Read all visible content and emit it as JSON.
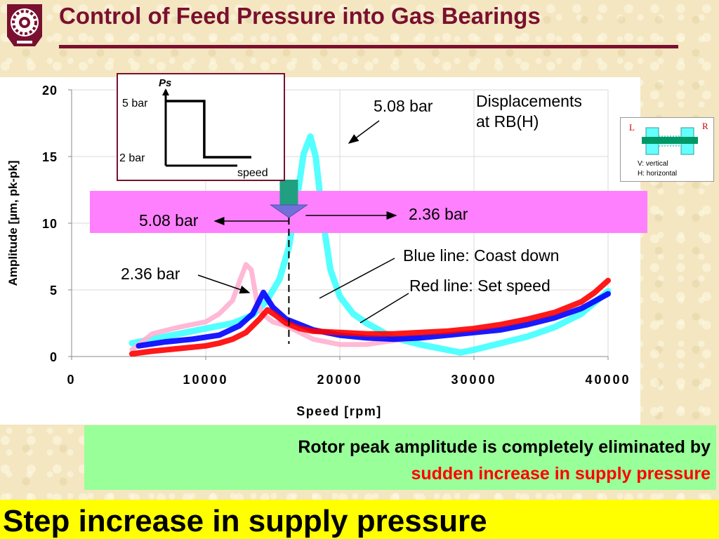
{
  "slide": {
    "title": "Control of Feed Pressure into Gas Bearings",
    "colors": {
      "title": "#7a1030",
      "highlight_band": "#ff80ff",
      "green_box": "#99ff99",
      "yellow_bar": "#ffff00",
      "emphasis_red": "#ff0000"
    }
  },
  "logo": {
    "icon": "gear-seal-logo-icon"
  },
  "inset_plot": {
    "ylabel": "Ps",
    "label_high": "5 bar",
    "label_low": "2 bar",
    "xlabel": "speed",
    "step": {
      "high_bar": 5,
      "low_bar": 2,
      "step_fraction_of_speed": 0.45
    }
  },
  "legend_box": {
    "label_left": "L",
    "label_right": "R",
    "line1": "V: vertical",
    "line2": "H: horizontal",
    "icon": "rotor-bearing-schematic-icon"
  },
  "annotations": {
    "displacements": [
      "Displacements",
      "at RB(H)"
    ],
    "pressure_top": "5.08 bar",
    "band_left": "5.08 bar",
    "band_right": "2.36 bar",
    "pressure_low": "2.36 bar",
    "blue_line": "Blue line: Coast down",
    "red_line": "Red line: Set speed",
    "step_speed_rpm": 16200
  },
  "chart_data": {
    "type": "line",
    "xlabel": "Speed [rpm]",
    "ylabel": "Amplitude [µm, pk-pk]",
    "xlim": [
      0,
      40000
    ],
    "ylim": [
      0,
      20
    ],
    "xticks": [
      0,
      10000,
      20000,
      30000,
      40000
    ],
    "xtick_labels": [
      "0",
      "10000",
      "20000",
      "30000",
      "40000"
    ],
    "yticks": [
      0,
      5,
      10,
      15,
      20
    ],
    "ytick_labels": [
      "0",
      "5",
      "10",
      "15",
      "20"
    ],
    "grid": true,
    "series": [
      {
        "color": "#40ffff",
        "x": [
          4500,
          6000,
          8000,
          10000,
          12000,
          13500,
          14500,
          15500,
          16200,
          16800,
          17300,
          17800,
          18200,
          18700,
          19300,
          20000,
          21000,
          22000,
          24000,
          26000,
          28000,
          29000,
          30000,
          32000,
          34000,
          36000,
          38000,
          40000
        ],
        "y": [
          1.0,
          1.3,
          1.7,
          2.1,
          2.5,
          3.1,
          4.1,
          5.8,
          8.2,
          11.8,
          15.2,
          16.5,
          15.0,
          10.5,
          6.5,
          4.5,
          3.2,
          2.5,
          1.4,
          0.9,
          0.5,
          0.3,
          0.5,
          1.0,
          1.5,
          2.2,
          3.2,
          4.9
        ]
      },
      {
        "color": "#ffb0d0",
        "x": [
          4500,
          6000,
          8000,
          10000,
          11000,
          12000,
          12500,
          13000,
          13400,
          13800,
          14200,
          15000,
          16000,
          17000,
          18000,
          20000,
          22000,
          24000,
          26000
        ],
        "y": [
          0.5,
          1.7,
          2.2,
          2.6,
          3.2,
          4.2,
          5.6,
          6.9,
          6.5,
          4.2,
          3.2,
          2.6,
          2.3,
          1.8,
          1.3,
          0.9,
          0.9,
          1.2,
          1.4
        ]
      },
      {
        "color": "#0000ff",
        "x": [
          5000,
          7000,
          9000,
          11000,
          12500,
          13500,
          14300,
          15000,
          16000,
          17000,
          18000,
          20000,
          22000,
          24000,
          26000,
          28000,
          30000,
          32000,
          34000,
          36000,
          38000,
          40000
        ],
        "y": [
          0.8,
          1.1,
          1.3,
          1.6,
          2.3,
          3.2,
          4.8,
          3.7,
          2.8,
          2.4,
          2.0,
          1.6,
          1.4,
          1.3,
          1.4,
          1.6,
          1.8,
          2.0,
          2.4,
          2.9,
          3.6,
          4.7
        ]
      },
      {
        "color": "#ff0000",
        "x": [
          4500,
          6000,
          8000,
          10000,
          11000,
          12000,
          13000,
          14000,
          14600,
          15200,
          16000,
          17000,
          18000,
          20000,
          22000,
          24000,
          26000,
          28000,
          30000,
          32000,
          34000,
          36000,
          38000,
          39000,
          40000
        ],
        "y": [
          0.2,
          0.4,
          0.6,
          0.8,
          1.0,
          1.3,
          1.8,
          2.8,
          3.5,
          3.1,
          2.5,
          2.1,
          1.9,
          1.8,
          1.7,
          1.7,
          1.8,
          1.9,
          2.1,
          2.4,
          2.8,
          3.3,
          4.1,
          4.8,
          5.7
        ]
      }
    ]
  },
  "footer": {
    "line1": "Rotor peak amplitude is completely eliminated by",
    "line2": "sudden increase in supply pressure",
    "banner": "Step increase in supply pressure"
  }
}
